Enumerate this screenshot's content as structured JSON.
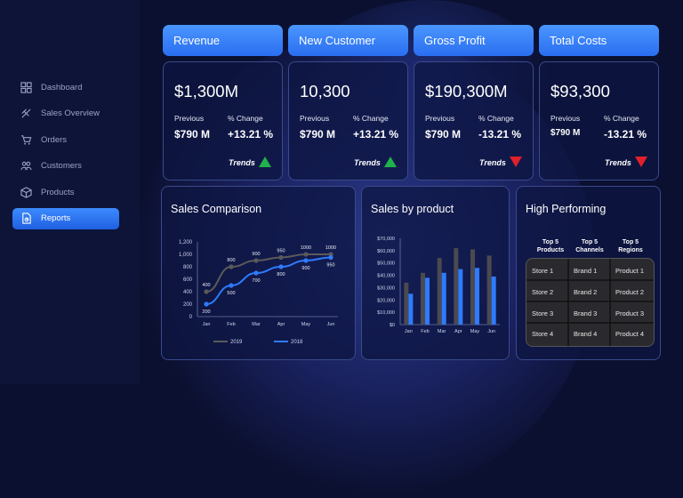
{
  "sidebar": {
    "items": [
      {
        "label": "Dashboard",
        "icon": "dashboard-grid-icon"
      },
      {
        "label": "Sales Overview",
        "icon": "sales-overview-icon"
      },
      {
        "label": "Orders",
        "icon": "cart-icon"
      },
      {
        "label": "Customers",
        "icon": "customers-icon"
      },
      {
        "label": "Products",
        "icon": "box-icon"
      },
      {
        "label": "Reports",
        "icon": "report-icon",
        "active": true
      }
    ]
  },
  "kpis": [
    {
      "title": "Revenue",
      "value": "$1,300M",
      "prev_label": "Previous",
      "change_label": "% Change",
      "prev": "$790 M",
      "change": "+13.21 %",
      "trend_label": "Trends",
      "trend": "up"
    },
    {
      "title": "New Customer",
      "value": "10,300",
      "prev_label": "Previous",
      "change_label": "% Change",
      "prev": "$790 M",
      "change": "+13.21 %",
      "trend_label": "Trends",
      "trend": "up"
    },
    {
      "title": "Gross Profit",
      "value": "$190,300M",
      "prev_label": "Previous",
      "change_label": "% Change",
      "prev": "$790 M",
      "change": "-13.21 %",
      "trend_label": "Trends",
      "trend": "down"
    },
    {
      "title": "Total Costs",
      "value": "$93,300",
      "prev_label": "Previous",
      "change_label": "% Change",
      "prev": "$790 M",
      "change": "-13.21 %",
      "trend_label": "Trends",
      "trend": "down"
    }
  ],
  "colors": {
    "accent": "#3d8bff",
    "up": "#1fb24a",
    "down": "#e0202a",
    "series_2019": "#5a5a5a",
    "series_2018": "#2f7bff"
  },
  "sales_comparison": {
    "title": "Sales Comparison",
    "chart_data": {
      "type": "line",
      "categories": [
        "Jan",
        "Feb",
        "Mar",
        "Apr",
        "May",
        "Jun"
      ],
      "yticks": [
        "0",
        "200",
        "400",
        "600",
        "800",
        "1,000",
        "1,200"
      ],
      "ylim": [
        0,
        1200
      ],
      "series": [
        {
          "name": "2019",
          "values": [
            400,
            800,
            900,
            950,
            1000,
            1000
          ],
          "labels": [
            "400",
            "800",
            "900",
            "950",
            "1000",
            "1000"
          ]
        },
        {
          "name": "2018",
          "values": [
            200,
            500,
            700,
            800,
            900,
            950
          ],
          "labels": [
            "200",
            "500",
            "700",
            "800",
            "900",
            "950"
          ]
        }
      ],
      "legend": "bottom"
    }
  },
  "sales_by_product": {
    "title": "Sales by product",
    "chart_data": {
      "type": "bar",
      "categories": [
        "Jan",
        "Feb",
        "Mar",
        "Apr",
        "May",
        "Jun"
      ],
      "yticks": [
        "$0",
        "$10,000",
        "$20,000",
        "$30,000",
        "$40,000",
        "$50,000",
        "$60,000",
        "$70,000"
      ],
      "ylim": [
        0,
        70000
      ],
      "series": [
        {
          "values": [
            34000,
            42000,
            54000,
            62000,
            61000,
            56000
          ]
        },
        {
          "values": [
            25000,
            38000,
            42000,
            45000,
            46000,
            39000
          ]
        }
      ]
    }
  },
  "high_performing": {
    "title": "High Performing",
    "columns": [
      [
        "Top 5",
        "Products"
      ],
      [
        "Top 5",
        "Channels"
      ],
      [
        "Top 5",
        "Regions"
      ]
    ],
    "rows": [
      [
        "Store 1",
        "Brand 1",
        "Product 1"
      ],
      [
        "Store 2",
        "Brand 2",
        "Product 2"
      ],
      [
        "Store 3",
        "Brand 3",
        "Product 3"
      ],
      [
        "Store 4",
        "Brand 4",
        "Product 4"
      ]
    ]
  }
}
